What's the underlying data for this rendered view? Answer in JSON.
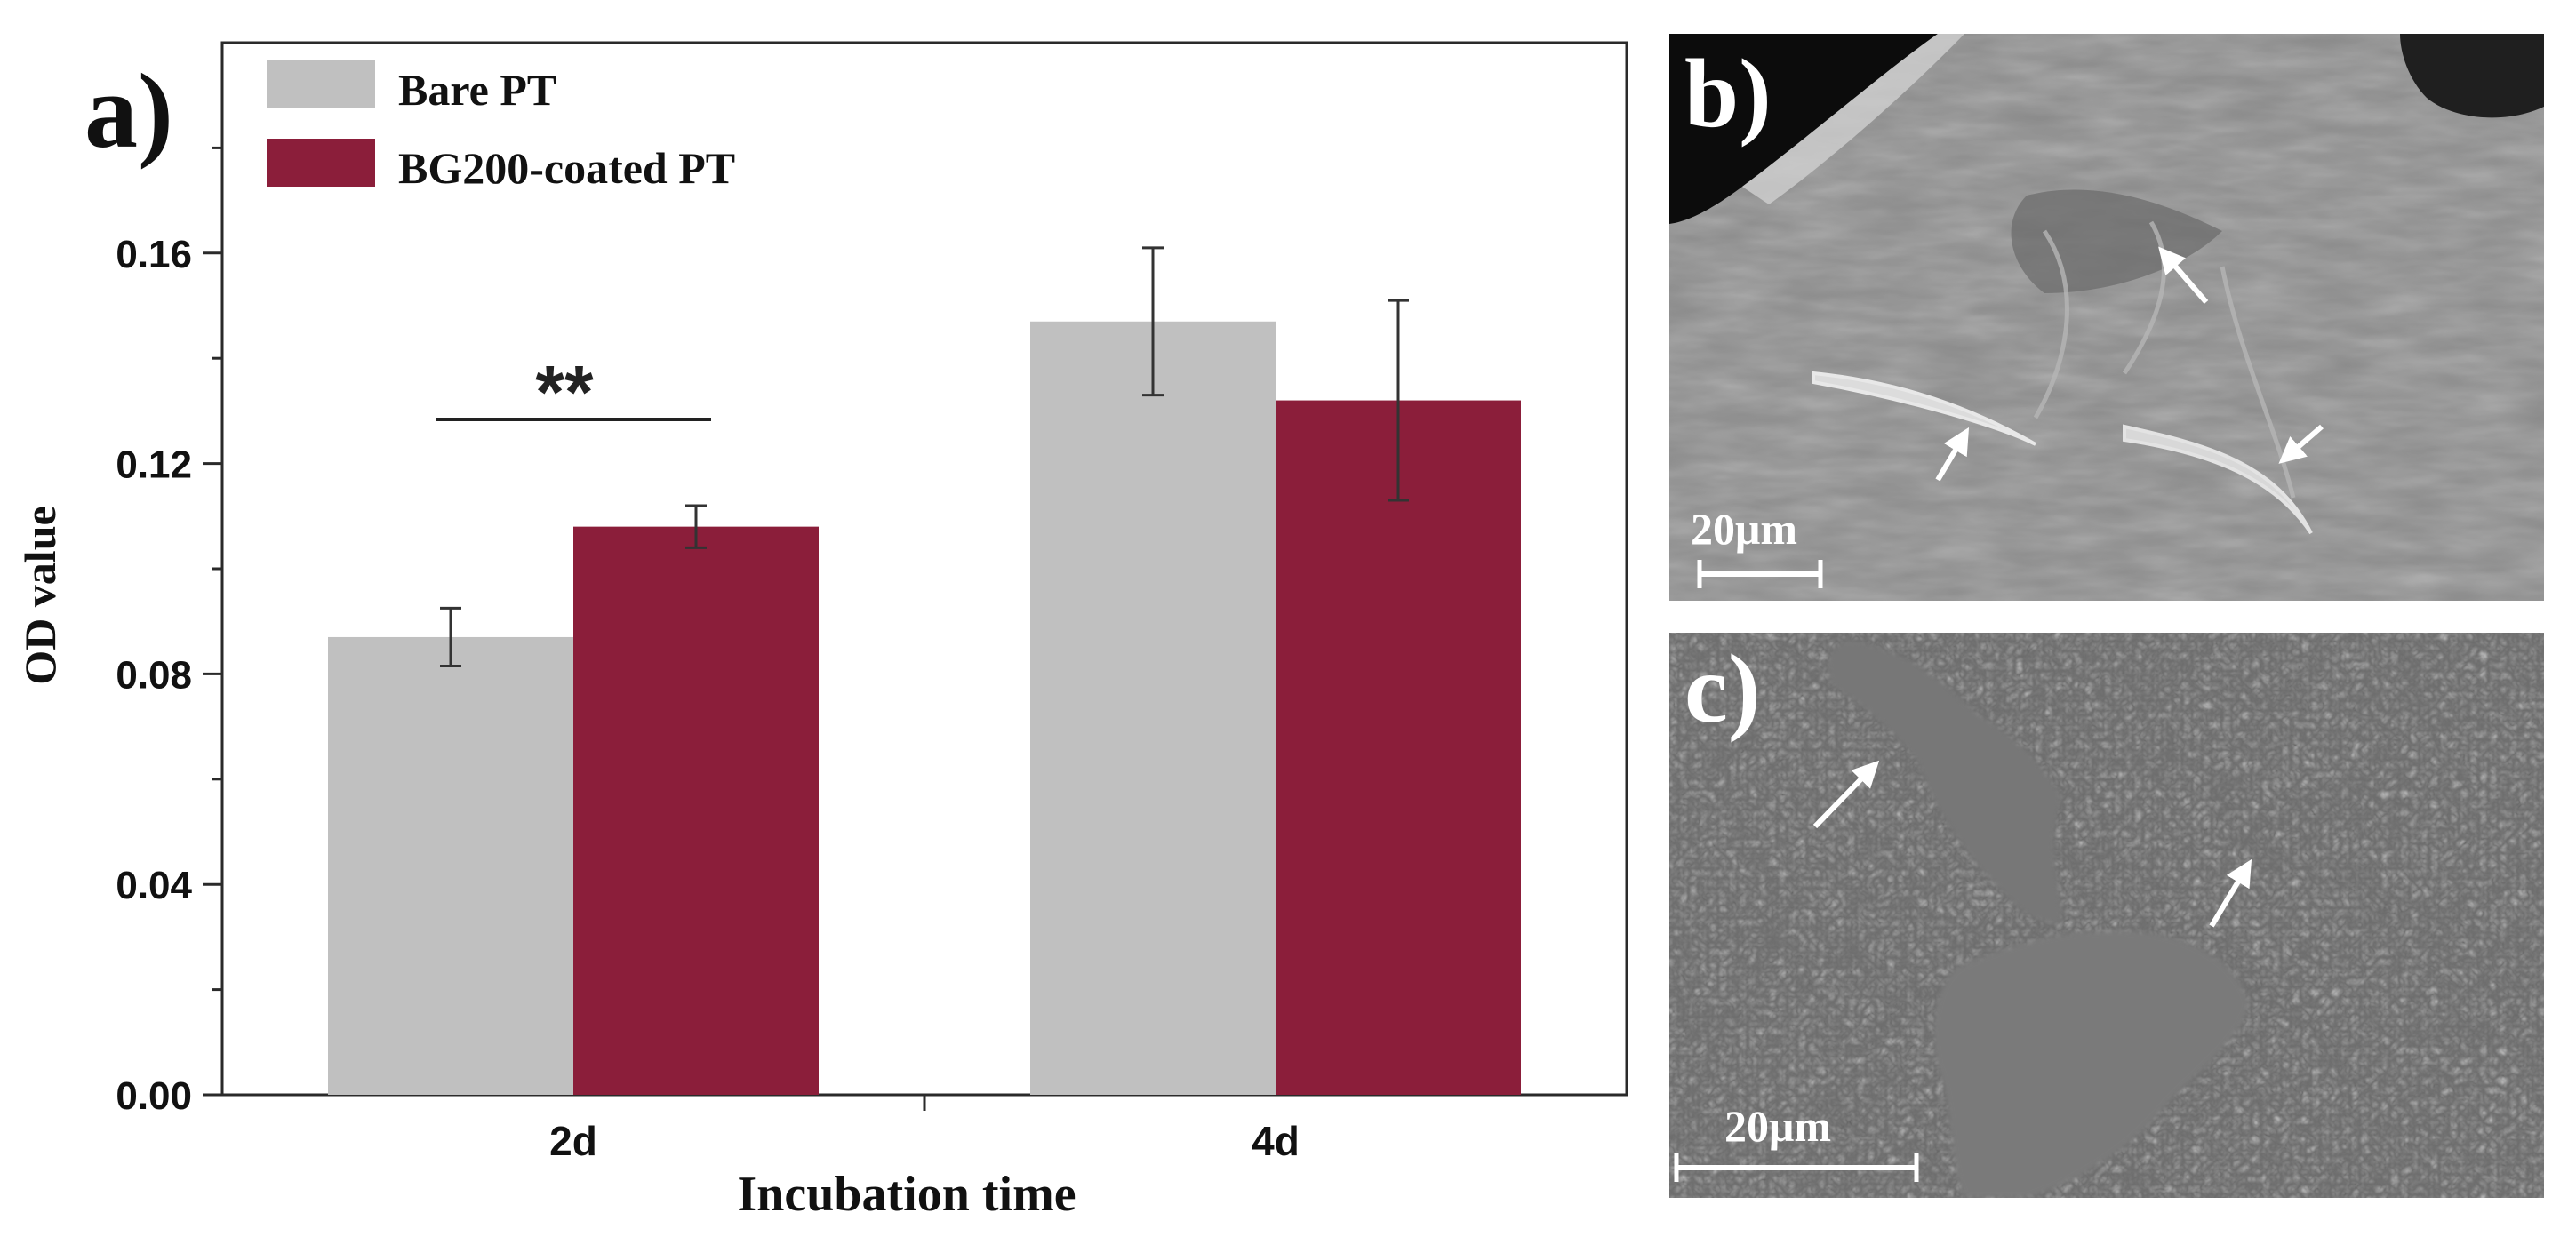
{
  "chart_data": {
    "type": "bar",
    "panel_label": "a)",
    "xlabel": "Incubation time",
    "ylabel": "OD value",
    "categories": [
      "2d",
      "4d"
    ],
    "ylim": [
      0.0,
      0.2
    ],
    "yticks": [
      0.0,
      0.04,
      0.08,
      0.12,
      0.16
    ],
    "series": [
      {
        "name": "Bare PT",
        "color": "#c0c0c0",
        "values": [
          0.087,
          0.147
        ],
        "errors": [
          0.0055,
          0.014
        ]
      },
      {
        "name": "BG200-coated PT",
        "color": "#8b1e3a",
        "values": [
          0.108,
          0.132
        ],
        "errors": [
          0.004,
          0.019
        ]
      }
    ],
    "significance": {
      "category": "2d",
      "label": "**"
    }
  },
  "micrographs": [
    {
      "label": "b)",
      "scale_bar": "20μm"
    },
    {
      "label": "c)",
      "scale_bar": "20μm"
    }
  ]
}
